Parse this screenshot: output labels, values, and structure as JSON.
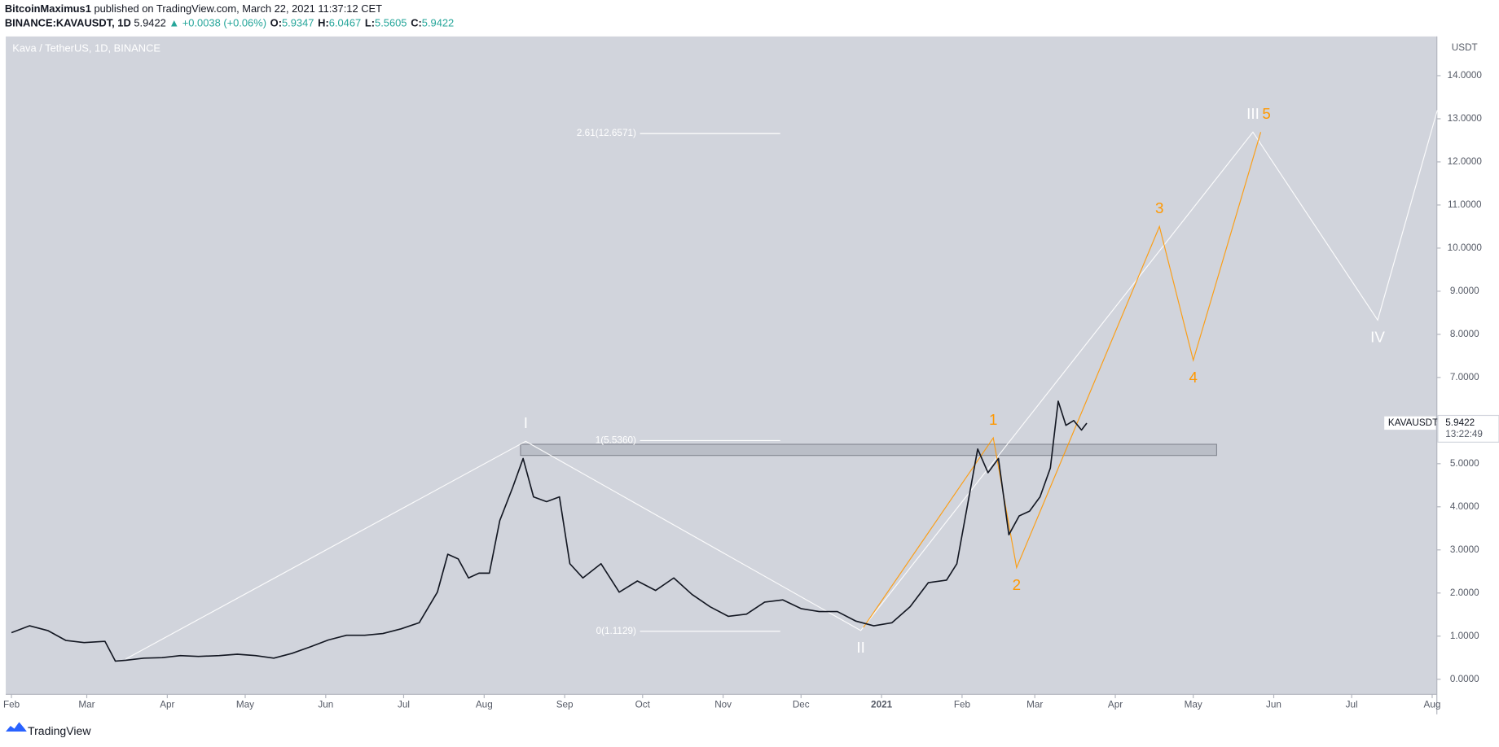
{
  "header": {
    "author": "BitcoinMaximus1",
    "published": "published on TradingView.com, March 22, 2021 11:37:12 CET",
    "symbol": "BINANCE:KAVAUSDT, 1D",
    "last": "5.9422",
    "arrow": "▲",
    "change": "+0.0038 (+0.06%)",
    "ohlc": [
      {
        "key": "O:",
        "value": "5.9347"
      },
      {
        "key": "H:",
        "value": "6.0467"
      },
      {
        "key": "L:",
        "value": "5.5605"
      },
      {
        "key": "C:",
        "value": "5.9422"
      }
    ]
  },
  "chart_data": {
    "type": "line",
    "title": "Kava / TetherUS, 1D, BINANCE",
    "y_axis_label": "USDT",
    "grid": false,
    "xlim": [
      -2.2,
      548.8
    ],
    "ylim": [
      -0.35,
      14.91
    ],
    "xticks": [
      {
        "value": 0,
        "label": "Feb"
      },
      {
        "value": 29,
        "label": "Mar"
      },
      {
        "value": 60,
        "label": "Apr"
      },
      {
        "value": 90,
        "label": "May"
      },
      {
        "value": 121,
        "label": "Jun"
      },
      {
        "value": 151,
        "label": "Jul"
      },
      {
        "value": 182,
        "label": "Aug"
      },
      {
        "value": 213,
        "label": "Sep"
      },
      {
        "value": 243,
        "label": "Oct"
      },
      {
        "value": 274,
        "label": "Nov"
      },
      {
        "value": 304,
        "label": "Dec"
      },
      {
        "value": 335,
        "label": "2021"
      },
      {
        "value": 366,
        "label": "Feb"
      },
      {
        "value": 394,
        "label": "Mar"
      },
      {
        "value": 425,
        "label": "Apr"
      },
      {
        "value": 455,
        "label": "May"
      },
      {
        "value": 486,
        "label": "Jun"
      },
      {
        "value": 516,
        "label": "Jul"
      },
      {
        "value": 547,
        "label": "Aug"
      }
    ],
    "yticks": [
      {
        "value": 0,
        "label": "0.0000"
      },
      {
        "value": 1,
        "label": "1.0000"
      },
      {
        "value": 2,
        "label": "2.0000"
      },
      {
        "value": 3,
        "label": "3.0000"
      },
      {
        "value": 4,
        "label": "4.0000"
      },
      {
        "value": 5,
        "label": "5.0000"
      },
      {
        "value": 6,
        "label": "6.0000"
      },
      {
        "value": 7,
        "label": "7.0000"
      },
      {
        "value": 8,
        "label": "8.0000"
      },
      {
        "value": 9,
        "label": "9.0000"
      },
      {
        "value": 10,
        "label": "10.0000"
      },
      {
        "value": 11,
        "label": "11.0000"
      },
      {
        "value": 12,
        "label": "12.0000"
      },
      {
        "value": 13,
        "label": "13.0000"
      },
      {
        "value": 14,
        "label": "14.0000"
      }
    ],
    "series": [
      {
        "name": "KAVAUSDT",
        "color": "#131722",
        "x": [
          0,
          7,
          14,
          21,
          28,
          36,
          40,
          44,
          51,
          58,
          65,
          72,
          80,
          87,
          94,
          101,
          108,
          115,
          122,
          129,
          136,
          143,
          150,
          157,
          164,
          168,
          172,
          176,
          180,
          184,
          188,
          193,
          197,
          201,
          206,
          211,
          215,
          220,
          227,
          234,
          241,
          248,
          255,
          262,
          269,
          276,
          283,
          290,
          297,
          304,
          311,
          318,
          325,
          332,
          339,
          346,
          353,
          360,
          364,
          368,
          372,
          376,
          380,
          384,
          388,
          392,
          396,
          400,
          403,
          406,
          409,
          412,
          414
        ],
        "values": [
          1.08,
          1.24,
          1.13,
          0.9,
          0.85,
          0.88,
          0.42,
          0.44,
          0.49,
          0.5,
          0.55,
          0.53,
          0.55,
          0.58,
          0.55,
          0.49,
          0.6,
          0.75,
          0.91,
          1.02,
          1.02,
          1.06,
          1.17,
          1.31,
          2.02,
          2.9,
          2.79,
          2.35,
          2.46,
          2.46,
          3.68,
          4.45,
          5.12,
          4.23,
          4.12,
          4.23,
          2.68,
          2.35,
          2.68,
          2.02,
          2.28,
          2.06,
          2.35,
          1.97,
          1.68,
          1.46,
          1.51,
          1.79,
          1.84,
          1.64,
          1.57,
          1.57,
          1.35,
          1.24,
          1.31,
          1.68,
          2.24,
          2.3,
          2.68,
          4.01,
          5.34,
          4.79,
          5.12,
          3.35,
          3.79,
          3.9,
          4.23,
          4.9,
          6.45,
          5.89,
          6.0,
          5.78,
          5.94
        ]
      }
    ],
    "last_price": {
      "value": 5.9422,
      "countdown": "13:22:49"
    },
    "fib_levels": [
      {
        "label": "2.61(12.6571)",
        "value": 12.6571
      },
      {
        "label": "1(5.5360)",
        "value": 5.536
      },
      {
        "label": "0(1.1129)",
        "value": 1.1129
      }
    ],
    "fib_x": [
      242,
      296
    ],
    "zone": {
      "x": [
        196,
        464
      ],
      "y": [
        5.19,
        5.45
      ]
    },
    "waves": [
      {
        "color": "#ffffff",
        "x": [
          44,
          198,
          327,
          478,
          526,
          549
        ],
        "values": [
          0.47,
          5.52,
          1.13,
          12.69,
          8.33,
          13.2
        ],
        "labels": [
          null,
          "I",
          "II",
          "III",
          "IV",
          null
        ]
      },
      {
        "color": "#ff9800",
        "x": [
          328,
          378,
          387,
          442,
          455,
          481
        ],
        "values": [
          1.2,
          5.6,
          2.59,
          10.5,
          7.4,
          12.69
        ],
        "labels": [
          null,
          "1",
          "2",
          "3",
          "4",
          "5"
        ]
      }
    ]
  },
  "footer": {
    "brand": "TradingView"
  }
}
